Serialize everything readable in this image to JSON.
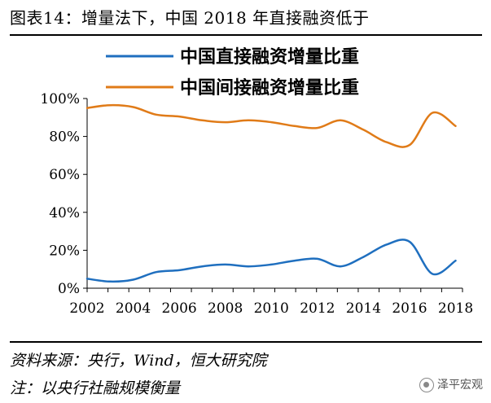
{
  "header": {
    "title": "图表14：增量法下，中国 2018 年直接融资低于"
  },
  "footer": {
    "source": "资料来源：央行，Wind，恒大研究院",
    "note": "注：以央行社融规模衡量",
    "watermark": "泽平宏观"
  },
  "chart_data": {
    "type": "line",
    "title": "",
    "xlabel": "",
    "ylabel": "",
    "x_ticks": [
      "2002",
      "2004",
      "2006",
      "2008",
      "2010",
      "2012",
      "2014",
      "2016",
      "2018"
    ],
    "y_ticks": [
      "0%",
      "20%",
      "40%",
      "60%",
      "80%",
      "100%"
    ],
    "xlim": [
      2002,
      2018.3
    ],
    "ylim": [
      0,
      100
    ],
    "grid": false,
    "legend": "top",
    "series": [
      {
        "name": "中国直接融资增量比重",
        "color": "#1f6fbf",
        "x": [
          2002,
          2003,
          2004,
          2005,
          2006,
          2007,
          2008,
          2009,
          2010,
          2011,
          2012,
          2013,
          2014,
          2015,
          2016,
          2017,
          2018
        ],
        "y": [
          5,
          3.5,
          4.5,
          8.5,
          9.5,
          11.5,
          12.5,
          11.5,
          12.5,
          14.5,
          15.5,
          11.5,
          16.5,
          23,
          24.5,
          7.5,
          14.5
        ]
      },
      {
        "name": "中国间接融资增量比重",
        "color": "#e07b18",
        "x": [
          2002,
          2003,
          2004,
          2005,
          2006,
          2007,
          2008,
          2009,
          2010,
          2011,
          2012,
          2013,
          2014,
          2015,
          2016,
          2017,
          2018
        ],
        "y": [
          95,
          96.5,
          95.5,
          91.5,
          90.5,
          88.5,
          87.5,
          88.5,
          87.5,
          85.5,
          84.5,
          88.5,
          83.5,
          77,
          75.5,
          92.5,
          85.5
        ]
      }
    ]
  }
}
